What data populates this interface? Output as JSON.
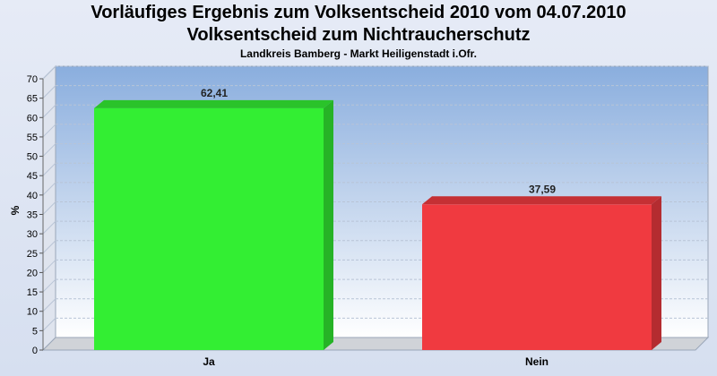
{
  "header": {
    "title_line1": "Vorläufiges Ergebnis zum Volksentscheid 2010 vom 04.07.2010",
    "title_line2": "Volksentscheid zum Nichtraucherschutz",
    "subtitle": "Landkreis Bamberg - Markt Heiligenstadt i.Ofr."
  },
  "chart_data": {
    "type": "bar",
    "title": "Vorläufiges Ergebnis zum Volksentscheid 2010 vom 04.07.2010",
    "subtitle": "Landkreis Bamberg - Markt Heiligenstadt i.Ofr.",
    "categories": [
      "Ja",
      "Nein"
    ],
    "values": [
      62.41,
      37.59
    ],
    "data_labels": [
      "62,41",
      "37,59"
    ],
    "colors": [
      "#33ee33",
      "#f03a40"
    ],
    "ylabel": "%",
    "xlabel": "",
    "ylim": [
      0,
      70
    ],
    "yticks": [
      0,
      5,
      10,
      15,
      20,
      25,
      30,
      35,
      40,
      45,
      50,
      55,
      60,
      65,
      70
    ],
    "grid": true,
    "legend": "none"
  }
}
